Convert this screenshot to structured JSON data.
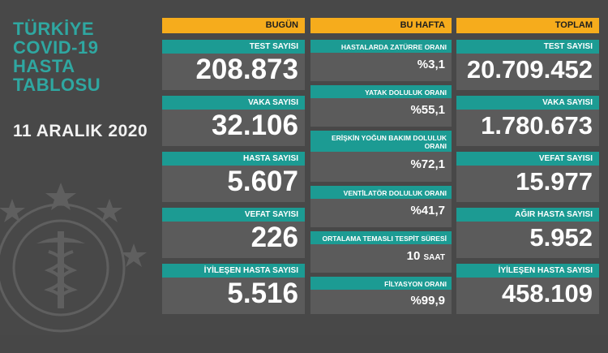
{
  "header": {
    "title_lines": [
      "TÜRKİYE",
      "COVID-19",
      "HASTA",
      "TABLOSU"
    ],
    "date": "11 ARALIK 2020"
  },
  "bugun": {
    "header": "BUGÜN",
    "cards": [
      {
        "label": "TEST SAYISI",
        "value": "208.873"
      },
      {
        "label": "VAKA SAYISI",
        "value": "32.106"
      },
      {
        "label": "HASTA SAYISI",
        "value": "5.607"
      },
      {
        "label": "VEFAT SAYISI",
        "value": "226"
      },
      {
        "label": "İYİLEŞEN HASTA SAYISI",
        "value": "5.516"
      }
    ]
  },
  "bu_hafta": {
    "header": "BU HAFTA",
    "cards": [
      {
        "label": "HASTALARDA ZATÜRRE ORANI",
        "value": "%3,1"
      },
      {
        "label": "YATAK DOLULUK ORANI",
        "value": "%55,1"
      },
      {
        "label": "ERİŞKİN YOĞUN BAKIM DOLULUK ORANI",
        "value": "%72,1"
      },
      {
        "label": "VENTİLATÖR DOLULUK ORANI",
        "value": "%41,7"
      },
      {
        "label": "ORTALAMA TEMASLI TESPİT SÜRESİ",
        "value": "10",
        "unit": "SAAT"
      },
      {
        "label": "FİLYASYON ORANI",
        "value": "%99,9"
      }
    ]
  },
  "toplam": {
    "header": "TOPLAM",
    "cards": [
      {
        "label": "TEST SAYISI",
        "value": "20.709.452"
      },
      {
        "label": "VAKA SAYISI",
        "value": "1.780.673"
      },
      {
        "label": "VEFAT SAYISI",
        "value": "15.977"
      },
      {
        "label": "AĞIR HASTA SAYISI",
        "value": "5.952"
      },
      {
        "label": "İYİLEŞEN HASTA SAYISI",
        "value": "458.109"
      }
    ]
  },
  "colors": {
    "background": "#484848",
    "accent_teal": "#1c9b93",
    "header_orange": "#f6ac1c",
    "card": "#5b5b5b"
  }
}
